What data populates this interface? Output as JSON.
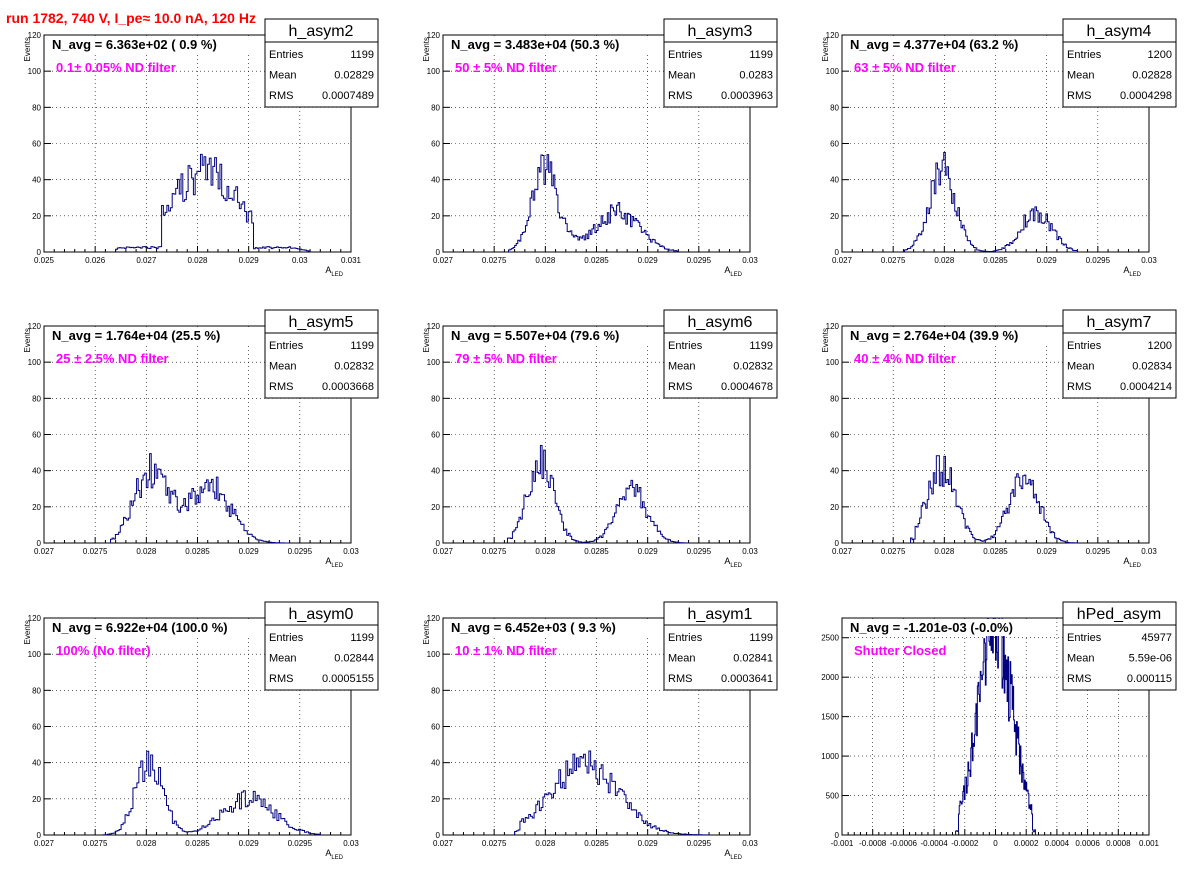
{
  "page": {
    "run_title": "run 1782,   740 V, I_pe≈ 10.0 nA, 120 Hz"
  },
  "colors": {
    "histogram": "#000080",
    "annotation": "#ff00ff",
    "title": "#ff0000",
    "grid": "#000000"
  },
  "chart_data": [
    {
      "type": "histogram",
      "name": "h_asym2",
      "navg": "N_avg = 6.363e+02 ( 0.9 %)",
      "annotation": "0.1± 0.05% ND filter",
      "stats": {
        "entries": "1199",
        "mean": "0.02829",
        "rms": "0.0007489"
      },
      "stats_labels": [
        "Entries",
        "Mean",
        "RMS"
      ],
      "xlabel": "A",
      "xlabel_sub": "LED",
      "ylabel": "Events",
      "xlim": [
        0.025,
        0.031
      ],
      "ylim": [
        0,
        120
      ],
      "xticks": [
        "0.025",
        "0.026",
        "0.027",
        "0.028",
        "0.029",
        "0.03",
        "0.031"
      ],
      "yticks": [
        "0",
        "20",
        "40",
        "60",
        "80",
        "100",
        "120"
      ],
      "bins": [
        0.0264,
        0.0273,
        0.0291,
        0.0302
      ],
      "peaks": [
        [
          0.02815,
          0.0007,
          44
        ]
      ]
    },
    {
      "type": "histogram",
      "name": "h_asym3",
      "navg": "N_avg = 3.483e+04 (50.3 %)",
      "annotation": "50 ± 5% ND filter",
      "stats": {
        "entries": "1199",
        "mean": "0.0283",
        "rms": "0.0003963"
      },
      "stats_labels": [
        "Entries",
        "Mean",
        "RMS"
      ],
      "xlabel": "A",
      "xlabel_sub": "LED",
      "ylabel": "Events",
      "xlim": [
        0.027,
        0.03
      ],
      "ylim": [
        0,
        120
      ],
      "xticks": [
        "0.027",
        "0.0275",
        "0.028",
        "0.0285",
        "0.029",
        "0.0295",
        "0.03"
      ],
      "yticks": [
        "0",
        "20",
        "40",
        "60",
        "80",
        "100",
        "120"
      ],
      "bins": [
        0.02764,
        0.02768,
        0.0292,
        0.0293
      ],
      "peaks": [
        [
          0.028,
          0.00013,
          45
        ],
        [
          0.0287,
          0.00022,
          22
        ]
      ]
    },
    {
      "type": "histogram",
      "name": "h_asym4",
      "navg": "N_avg = 4.377e+04 (63.2 %)",
      "annotation": "63 ± 5% ND filter",
      "stats": {
        "entries": "1200",
        "mean": "0.02828",
        "rms": "0.0004298"
      },
      "stats_labels": [
        "Entries",
        "Mean",
        "RMS"
      ],
      "xlabel": "A",
      "xlabel_sub": "LED",
      "ylabel": "Events",
      "xlim": [
        0.027,
        0.03
      ],
      "ylim": [
        0,
        120
      ],
      "xticks": [
        "0.027",
        "0.0275",
        "0.028",
        "0.0285",
        "0.029",
        "0.0295",
        "0.03"
      ],
      "yticks": [
        "0",
        "20",
        "40",
        "60",
        "80",
        "100",
        "120"
      ],
      "bins": [
        0.02761,
        0.02767,
        0.02925,
        0.0293
      ],
      "peaks": [
        [
          0.02798,
          0.00013,
          46
        ],
        [
          0.0289,
          0.00015,
          22
        ]
      ]
    },
    {
      "type": "histogram",
      "name": "h_asym5",
      "navg": "N_avg = 1.764e+04 (25.5 %)",
      "annotation": "25 ± 2.5% ND filter",
      "stats": {
        "entries": "1199",
        "mean": "0.02832",
        "rms": "0.0003668"
      },
      "stats_labels": [
        "Entries",
        "Mean",
        "RMS"
      ],
      "xlabel": "A",
      "xlabel_sub": "LED",
      "ylabel": "Events",
      "xlim": [
        0.027,
        0.03
      ],
      "ylim": [
        0,
        120
      ],
      "xticks": [
        "0.027",
        "0.0275",
        "0.028",
        "0.0285",
        "0.029",
        "0.0295",
        "0.03"
      ],
      "yticks": [
        "0",
        "20",
        "40",
        "60",
        "80",
        "100",
        "120"
      ],
      "bins": [
        0.02765,
        0.0277,
        0.0293,
        0.0294
      ],
      "peaks": [
        [
          0.02805,
          0.00017,
          40
        ],
        [
          0.02862,
          0.0002,
          32
        ]
      ]
    },
    {
      "type": "histogram",
      "name": "h_asym6",
      "navg": "N_avg = 5.507e+04 (79.6 %)",
      "annotation": "79 ± 5% ND filter",
      "stats": {
        "entries": "1199",
        "mean": "0.02832",
        "rms": "0.0004678"
      },
      "stats_labels": [
        "Entries",
        "Mean",
        "RMS"
      ],
      "xlabel": "A",
      "xlabel_sub": "LED",
      "ylabel": "Events",
      "xlim": [
        0.027,
        0.03
      ],
      "ylim": [
        0,
        120
      ],
      "xticks": [
        "0.027",
        "0.0275",
        "0.028",
        "0.0285",
        "0.029",
        "0.0295",
        "0.03"
      ],
      "yticks": [
        "0",
        "20",
        "40",
        "60",
        "80",
        "100",
        "120"
      ],
      "bins": [
        0.02763,
        0.02768,
        0.02935,
        0.0294
      ],
      "peaks": [
        [
          0.02795,
          0.00013,
          46
        ],
        [
          0.02885,
          0.00015,
          28
        ]
      ]
    },
    {
      "type": "histogram",
      "name": "h_asym7",
      "navg": "N_avg = 2.764e+04 (39.9 %)",
      "annotation": "40 ± 4% ND filter",
      "stats": {
        "entries": "1200",
        "mean": "0.02834",
        "rms": "0.0004214"
      },
      "stats_labels": [
        "Entries",
        "Mean",
        "RMS"
      ],
      "xlabel": "A",
      "xlabel_sub": "LED",
      "ylabel": "Events",
      "xlim": [
        0.027,
        0.03
      ],
      "ylim": [
        0,
        120
      ],
      "xticks": [
        "0.027",
        "0.0275",
        "0.028",
        "0.0285",
        "0.029",
        "0.0295",
        "0.03"
      ],
      "yticks": [
        "0",
        "20",
        "40",
        "60",
        "80",
        "100",
        "120"
      ],
      "bins": [
        0.02767,
        0.02772,
        0.02925,
        0.0293
      ],
      "peaks": [
        [
          0.02797,
          0.00014,
          42
        ],
        [
          0.02878,
          0.00014,
          40
        ]
      ]
    },
    {
      "type": "histogram",
      "name": "h_asym0",
      "navg": "N_avg = 6.922e+04 (100.0 %)",
      "annotation": "100% (No filter)",
      "stats": {
        "entries": "1199",
        "mean": "0.02844",
        "rms": "0.0005155"
      },
      "stats_labels": [
        "Entries",
        "Mean",
        "RMS"
      ],
      "xlabel": "A",
      "xlabel_sub": "LED",
      "ylabel": "Events",
      "xlim": [
        0.027,
        0.03
      ],
      "ylim": [
        0,
        120
      ],
      "xticks": [
        "0.027",
        "0.0275",
        "0.028",
        "0.0285",
        "0.029",
        "0.0295",
        "0.03"
      ],
      "yticks": [
        "0",
        "20",
        "40",
        "60",
        "80",
        "100",
        "120"
      ],
      "bins": [
        0.02758,
        0.02762,
        0.0296,
        0.0297
      ],
      "peaks": [
        [
          0.02803,
          0.00013,
          42
        ],
        [
          0.029,
          0.00025,
          20
        ]
      ]
    },
    {
      "type": "histogram",
      "name": "h_asym1",
      "navg": "N_avg = 6.452e+03 ( 9.3 %)",
      "annotation": "10 ± 1% ND filter",
      "stats": {
        "entries": "1199",
        "mean": "0.02841",
        "rms": "0.0003641"
      },
      "stats_labels": [
        "Entries",
        "Mean",
        "RMS"
      ],
      "xlabel": "A",
      "xlabel_sub": "LED",
      "ylabel": "Events",
      "xlim": [
        0.027,
        0.03
      ],
      "ylim": [
        0,
        120
      ],
      "xticks": [
        "0.027",
        "0.0275",
        "0.028",
        "0.0285",
        "0.029",
        "0.0295",
        "0.03"
      ],
      "yticks": [
        "0",
        "20",
        "40",
        "60",
        "80",
        "100",
        "120"
      ],
      "bins": [
        0.0277,
        0.02775,
        0.02955,
        0.0296
      ],
      "peaks": [
        [
          0.02838,
          0.00033,
          38
        ]
      ]
    },
    {
      "type": "histogram",
      "name": "hPed_asym",
      "navg": "N_avg = -1.201e-03 (-0.0%)",
      "annotation": "Shutter Closed",
      "stats": {
        "entries": "45977",
        "mean": "5.59e-06",
        "rms": "0.000115"
      },
      "stats_labels": [
        "Entries",
        "Mean",
        "RMS"
      ],
      "xlabel": "",
      "xlabel_sub": "",
      "ylabel": "",
      "xlim": [
        -0.001,
        0.001
      ],
      "ylim": [
        0,
        2750
      ],
      "xticks": [
        "-0.001",
        "-0.0008",
        "-0.0006",
        "-0.0004",
        "-0.0002",
        "0",
        "0.0002",
        "0.0004",
        "0.0006",
        "0.0008",
        "0.001"
      ],
      "yticks": [
        "0",
        "500",
        "1000",
        "1500",
        "2000",
        "2500"
      ],
      "bins": [
        -0.00026,
        -0.00024,
        0.00024,
        0.00026
      ],
      "peaks": [
        [
          0.0,
          0.000115,
          2550
        ]
      ]
    }
  ]
}
